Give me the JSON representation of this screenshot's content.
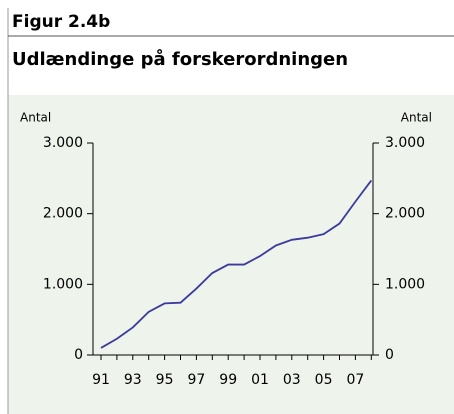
{
  "chart_data": {
    "type": "line",
    "figure_label": "Figur 2.4b",
    "title": "Udlændinge på forskerordningen",
    "y_label": "Antal",
    "y2_label": "Antal",
    "categories": [
      "91",
      null,
      "93",
      null,
      "95",
      null,
      "97",
      null,
      "99",
      null,
      "01",
      null,
      "03",
      null,
      "05",
      null,
      "07",
      null
    ],
    "series": [
      {
        "color": "#3b3b9c",
        "values": [
          100,
          230,
          390,
          610,
          730,
          740,
          940,
          1160,
          1280,
          1280,
          1400,
          1550,
          1630,
          1660,
          1710,
          1860,
          2170,
          2470
        ]
      }
    ],
    "ylim": [
      0,
      3000
    ],
    "yticks": [
      0,
      {
        "value": 1000,
        "label": "1.000"
      },
      {
        "value": 2000,
        "label": "2.000"
      },
      {
        "value": 3000,
        "label": "3.000"
      }
    ],
    "y2lim": [
      0,
      3000
    ],
    "y2ticks": [
      0,
      {
        "value": 1000,
        "label": "1.000"
      },
      {
        "value": 2000,
        "label": "2.000"
      },
      {
        "value": 3000,
        "label": "3.000"
      }
    ]
  }
}
